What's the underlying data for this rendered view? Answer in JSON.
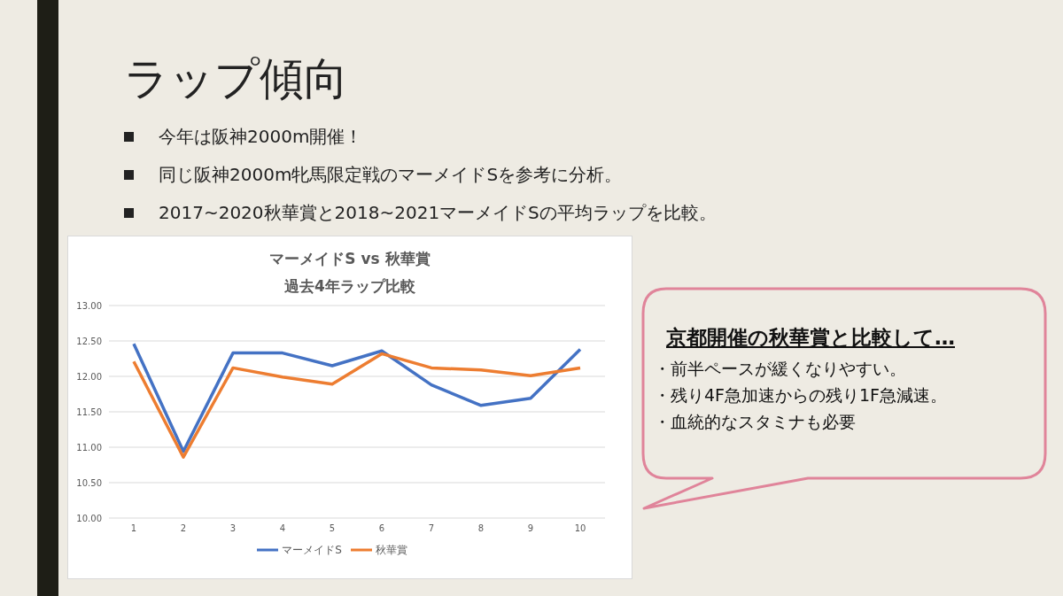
{
  "chart_data": {
    "type": "line",
    "title": "マーメイドS vs 秋華賞",
    "subtitle": "過去4年ラップ比較",
    "categories": [
      "1",
      "2",
      "3",
      "4",
      "5",
      "6",
      "7",
      "8",
      "9",
      "10"
    ],
    "series": [
      {
        "name": "マーメイドS",
        "color": "#4472c4",
        "values": [
          12.46,
          10.94,
          12.33,
          12.33,
          12.15,
          12.36,
          11.88,
          11.59,
          11.69,
          12.38
        ]
      },
      {
        "name": "秋華賞",
        "color": "#ed7d31",
        "values": [
          12.21,
          10.86,
          12.12,
          11.99,
          11.89,
          12.32,
          12.12,
          12.09,
          12.01,
          12.12
        ]
      }
    ],
    "ylim": [
      10,
      13
    ],
    "yticks": [
      {
        "value": 10,
        "label": "10.00"
      },
      {
        "value": 10.5,
        "label": "10.50"
      },
      {
        "value": 11,
        "label": "11.00"
      },
      {
        "value": 11.5,
        "label": "11.50"
      },
      {
        "value": 12,
        "label": "12.00"
      },
      {
        "value": 12.5,
        "label": "12.50"
      },
      {
        "value": 13,
        "label": "13.00"
      }
    ],
    "grid": "y",
    "legend": "bottom",
    "marker": "none",
    "line_style": "solid",
    "annotations": [
      "ラップ傾向",
      "今年は阪神2000m開催！",
      "同じ阪神2000m牝馬限定戦のマーメイドSを参考に分析。",
      "2017~2020秋華賞と2018~2021マーメイドSの平均ラップを比較。",
      "京都開催の秋華賞と比較して…",
      "・前半ペースが緩くなりやすい。",
      "・残り4F急加速からの残り1F急減速。",
      "・血統的なスタミナも必要"
    ]
  }
}
